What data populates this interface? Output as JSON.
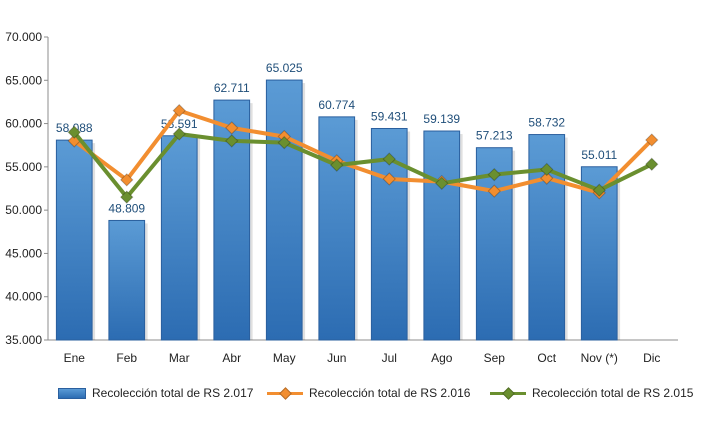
{
  "chart_data": {
    "type": "bar",
    "categories": [
      "Ene",
      "Feb",
      "Mar",
      "Abr",
      "May",
      "Jun",
      "Jul",
      "Ago",
      "Sep",
      "Oct",
      "Nov (*)",
      "Dic"
    ],
    "ylim": [
      35000,
      70000
    ],
    "yticks": [
      {
        "value": 35000,
        "label": "35.000"
      },
      {
        "value": 40000,
        "label": "40.000"
      },
      {
        "value": 45000,
        "label": "45.000"
      },
      {
        "value": 50000,
        "label": "50.000"
      },
      {
        "value": 55000,
        "label": "55.000"
      },
      {
        "value": 60000,
        "label": "60.000"
      },
      {
        "value": 65000,
        "label": "65.000"
      },
      {
        "value": 70000,
        "label": "70.000"
      }
    ],
    "grid": false,
    "legend_position": "bottom",
    "series": [
      {
        "name": "Recolección total de RS 2.017",
        "type": "bar",
        "color": "#3a7dc8",
        "values": [
          58088,
          48809,
          58591,
          62711,
          65025,
          60774,
          59431,
          59139,
          57213,
          58732,
          55011,
          null
        ],
        "labels": [
          "58.088",
          "48.809",
          "58.591",
          "62.711",
          "65.025",
          "60.774",
          "59.431",
          "59.139",
          "57.213",
          "58.732",
          "55.011",
          ""
        ]
      },
      {
        "name": "Recolección total de RS 2.016",
        "type": "line",
        "color": "#f28e30",
        "values": [
          58000,
          53500,
          61500,
          59500,
          58500,
          55700,
          53600,
          53300,
          52200,
          53700,
          52000,
          58100
        ]
      },
      {
        "name": "Recolección total de RS 2.015",
        "type": "line",
        "color": "#6a8f2f",
        "values": [
          59000,
          51500,
          58800,
          58000,
          57800,
          55200,
          55900,
          53100,
          54100,
          54700,
          52300,
          55300
        ]
      }
    ]
  }
}
